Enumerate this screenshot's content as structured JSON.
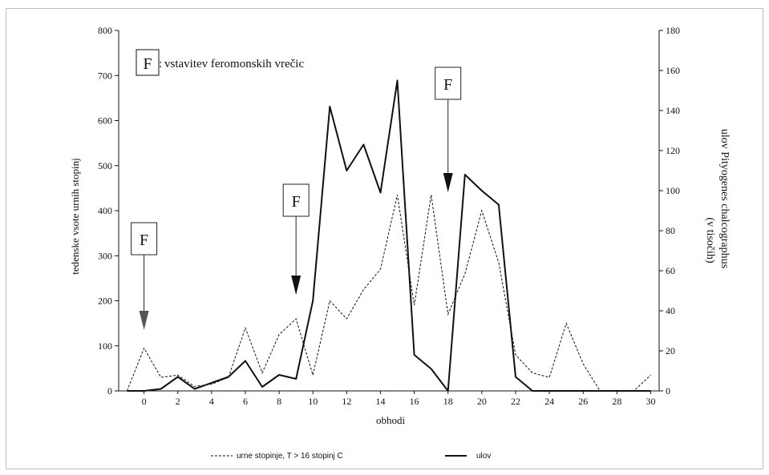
{
  "chart_data": {
    "type": "line",
    "xlabel": "obhodi",
    "ylabel_left": "tedenske vsote urnih stopinj",
    "ylabel_right_1": "ulov Pityogenes chalcographus",
    "ylabel_right_2": "(v tisočih)",
    "xlim": [
      -1.5,
      30.5
    ],
    "ylim_left": [
      0,
      800
    ],
    "ylim_right": [
      0,
      180
    ],
    "x_ticks": [
      0,
      2,
      4,
      6,
      8,
      10,
      12,
      14,
      16,
      18,
      20,
      22,
      24,
      26,
      28,
      30
    ],
    "x_tick_labels": [
      "0",
      "2",
      "4",
      "6",
      "8",
      "10",
      "12",
      "14",
      "16",
      "18",
      "20",
      "22",
      "24",
      "26",
      "28",
      "30"
    ],
    "y_left_ticks": [
      0,
      100,
      200,
      300,
      400,
      500,
      600,
      700,
      800
    ],
    "y_left_tick_labels": [
      "0",
      "100",
      "200",
      "300",
      "400",
      "500",
      "600",
      "700",
      "800"
    ],
    "y_right_ticks": [
      0,
      20,
      40,
      60,
      80,
      100,
      120,
      140,
      160,
      180
    ],
    "y_right_tick_labels": [
      "0",
      "20",
      "40",
      "60",
      "80",
      "100",
      "120",
      "140",
      "160",
      "180"
    ],
    "grid": false,
    "series": [
      {
        "name": "urne stopinje,  T > 16 stopinj C",
        "axis": "left",
        "style": "dashed",
        "x": [
          -1,
          0,
          1,
          2,
          3,
          4,
          5,
          6,
          7,
          8,
          9,
          10,
          11,
          12,
          13,
          14,
          15,
          16,
          17,
          18,
          19,
          20,
          21,
          22,
          23,
          24,
          25,
          26,
          27,
          28,
          29,
          30
        ],
        "values": [
          0,
          95,
          30,
          35,
          10,
          15,
          30,
          140,
          40,
          125,
          160,
          35,
          200,
          160,
          225,
          270,
          435,
          190,
          435,
          170,
          260,
          400,
          285,
          80,
          40,
          30,
          150,
          60,
          0,
          0,
          0,
          35
        ]
      },
      {
        "name": "ulov",
        "axis": "right",
        "style": "solid",
        "x": [
          -1,
          0,
          1,
          2,
          3,
          4,
          5,
          6,
          7,
          8,
          9,
          10,
          11,
          12,
          13,
          14,
          15,
          16,
          17,
          18,
          19,
          20,
          21,
          22,
          23,
          24,
          25,
          26,
          27,
          28,
          29,
          30
        ],
        "values": [
          0,
          0,
          1,
          7,
          1,
          4,
          7,
          15,
          2,
          8,
          6,
          45,
          142,
          110,
          123,
          99,
          155,
          18,
          11,
          0,
          108,
          100,
          93,
          7,
          0,
          0,
          0,
          0,
          0,
          0,
          0,
          0
        ]
      }
    ],
    "annotation_note": "vstavitev feromonskih vrečic",
    "markers": [
      {
        "label": "F",
        "x": 0
      },
      {
        "label": "F",
        "x": 9
      },
      {
        "label": "F",
        "x": 18
      }
    ],
    "legend_position": "bottom-center"
  }
}
